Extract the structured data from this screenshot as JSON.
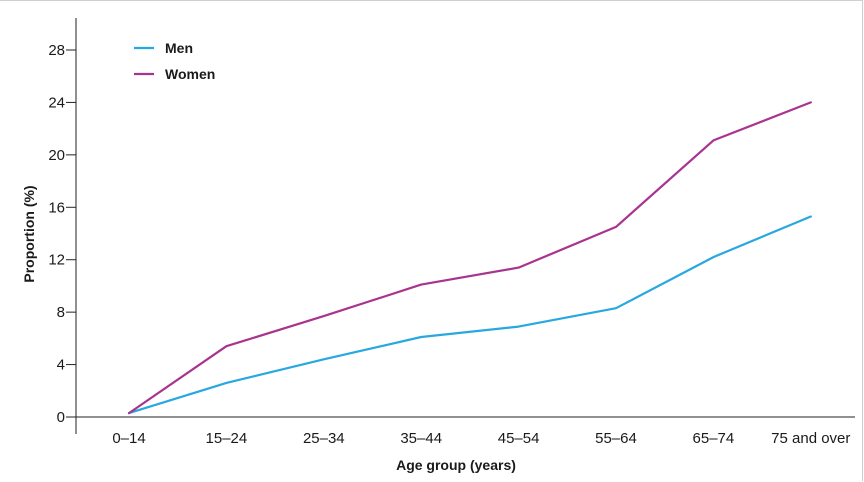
{
  "chart_data": {
    "type": "line",
    "xlabel": "Age group (years)",
    "ylabel": "Proportion (%)",
    "categories": [
      "0–14",
      "15–24",
      "25–34",
      "35–44",
      "45–54",
      "55–64",
      "65–74",
      "75 and over"
    ],
    "ylim": [
      0,
      28
    ],
    "yticks": [
      0,
      4,
      8,
      12,
      16,
      20,
      24,
      28
    ],
    "grid": false,
    "legend_position": "top-left",
    "series": [
      {
        "name": "Men",
        "color": "#29a8e0",
        "values": [
          0.3,
          2.6,
          4.4,
          6.1,
          6.9,
          8.3,
          12.2,
          15.3
        ]
      },
      {
        "name": "Women",
        "color": "#a8348f",
        "values": [
          0.3,
          5.4,
          7.7,
          10.1,
          11.4,
          14.5,
          21.1,
          24.0
        ]
      }
    ]
  }
}
